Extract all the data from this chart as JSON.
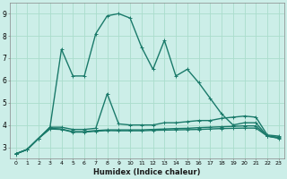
{
  "xlabel": "Humidex (Indice chaleur)",
  "background_color": "#cceee8",
  "grid_color": "#aaddcc",
  "line_color": "#1a7a6a",
  "x_ticks": [
    0,
    1,
    2,
    3,
    4,
    5,
    6,
    7,
    8,
    9,
    10,
    11,
    12,
    13,
    14,
    15,
    16,
    17,
    18,
    19,
    20,
    21,
    22,
    23
  ],
  "y_ticks": [
    3,
    4,
    5,
    6,
    7,
    8,
    9
  ],
  "ylim": [
    2.5,
    9.5
  ],
  "xlim": [
    -0.5,
    23.5
  ],
  "series": [
    {
      "x": [
        0,
        1,
        2,
        3,
        4,
        5,
        6,
        7,
        8,
        9,
        10,
        11,
        12,
        13,
        14,
        15,
        16,
        17,
        18,
        19,
        20,
        21,
        22,
        23
      ],
      "y": [
        2.7,
        2.9,
        3.4,
        3.9,
        7.4,
        6.2,
        6.2,
        8.1,
        8.9,
        9.0,
        8.8,
        7.5,
        6.5,
        7.8,
        6.2,
        6.5,
        5.9,
        5.2,
        4.5,
        4.0,
        4.1,
        4.1,
        3.5,
        3.4
      ]
    },
    {
      "x": [
        0,
        1,
        2,
        3,
        4,
        5,
        6,
        7,
        8,
        9,
        10,
        11,
        12,
        13,
        14,
        15,
        16,
        17,
        18,
        19,
        20,
        21,
        22,
        23
      ],
      "y": [
        2.7,
        2.9,
        3.4,
        3.9,
        3.9,
        3.8,
        3.8,
        3.85,
        5.4,
        4.05,
        4.0,
        4.0,
        4.0,
        4.1,
        4.1,
        4.15,
        4.2,
        4.2,
        4.3,
        4.35,
        4.4,
        4.35,
        3.55,
        3.5
      ]
    },
    {
      "x": [
        0,
        1,
        2,
        3,
        4,
        5,
        6,
        7,
        8,
        9,
        10,
        11,
        12,
        13,
        14,
        15,
        16,
        17,
        18,
        19,
        20,
        21,
        22,
        23
      ],
      "y": [
        2.7,
        2.9,
        3.4,
        3.85,
        3.82,
        3.7,
        3.7,
        3.75,
        3.78,
        3.78,
        3.78,
        3.78,
        3.8,
        3.82,
        3.84,
        3.85,
        3.88,
        3.9,
        3.92,
        3.94,
        3.96,
        3.96,
        3.5,
        3.45
      ]
    },
    {
      "x": [
        0,
        1,
        2,
        3,
        4,
        5,
        6,
        7,
        8,
        9,
        10,
        11,
        12,
        13,
        14,
        15,
        16,
        17,
        18,
        19,
        20,
        21,
        22,
        23
      ],
      "y": [
        2.7,
        2.9,
        3.4,
        3.82,
        3.8,
        3.68,
        3.68,
        3.72,
        3.75,
        3.74,
        3.74,
        3.74,
        3.76,
        3.77,
        3.78,
        3.79,
        3.8,
        3.82,
        3.84,
        3.85,
        3.86,
        3.86,
        3.5,
        3.42
      ]
    }
  ]
}
